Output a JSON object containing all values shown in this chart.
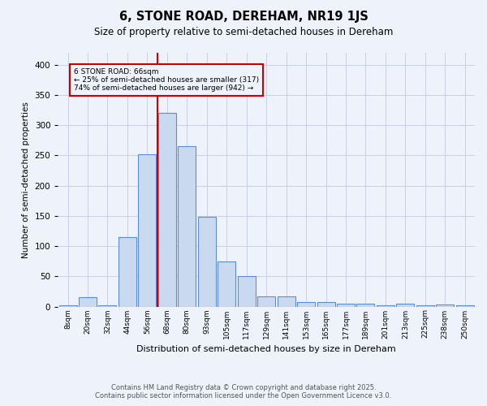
{
  "title": "6, STONE ROAD, DEREHAM, NR19 1JS",
  "subtitle": "Size of property relative to semi-detached houses in Dereham",
  "xlabel": "Distribution of semi-detached houses by size in Dereham",
  "ylabel": "Number of semi-detached properties",
  "bar_color": "#c9d9f0",
  "bar_edge_color": "#5b8dd9",
  "categories": [
    "8sqm",
    "20sqm",
    "32sqm",
    "44sqm",
    "56sqm",
    "68sqm",
    "80sqm",
    "93sqm",
    "105sqm",
    "117sqm",
    "129sqm",
    "141sqm",
    "153sqm",
    "165sqm",
    "177sqm",
    "189sqm",
    "201sqm",
    "213sqm",
    "225sqm",
    "238sqm",
    "250sqm"
  ],
  "values": [
    2,
    15,
    2,
    115,
    252,
    320,
    265,
    148,
    75,
    51,
    17,
    17,
    8,
    8,
    5,
    5,
    2,
    5,
    2,
    3,
    2
  ],
  "annotation_line1": "6 STONE ROAD: 66sqm",
  "annotation_line2": "← 25% of semi-detached houses are smaller (317)",
  "annotation_line3": "74% of semi-detached houses are larger (942) →",
  "vline_index": 5,
  "vline_color": "#cc0000",
  "annotation_box_color": "#cc0000",
  "grid_color": "#c8d0e8",
  "background_color": "#eef2fb",
  "footer_line1": "Contains HM Land Registry data © Crown copyright and database right 2025.",
  "footer_line2": "Contains public sector information licensed under the Open Government Licence v3.0.",
  "ylim": [
    0,
    420
  ],
  "yticks": [
    0,
    50,
    100,
    150,
    200,
    250,
    300,
    350,
    400
  ]
}
